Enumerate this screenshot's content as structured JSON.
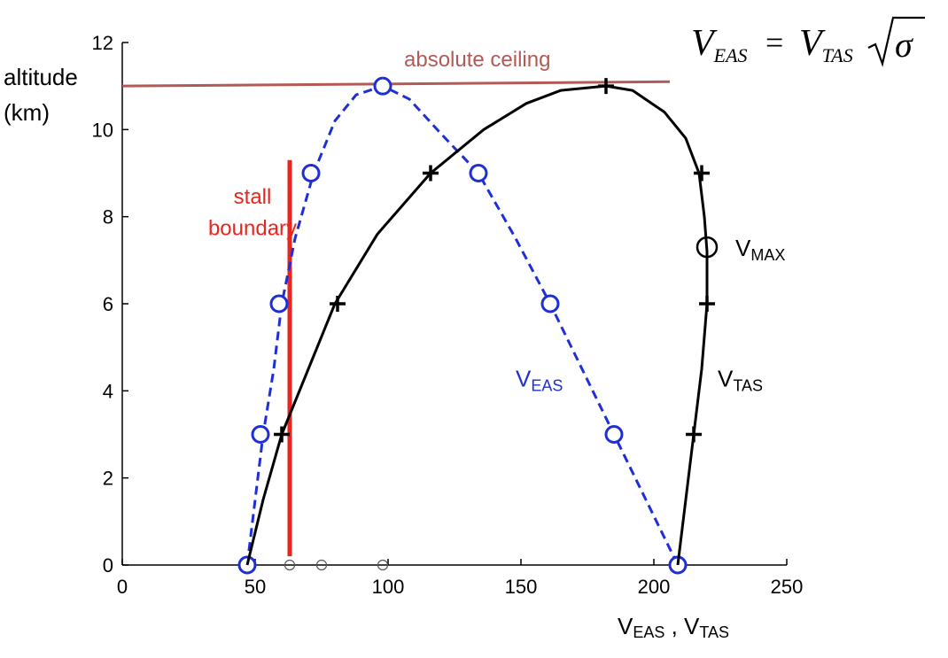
{
  "chart_data": {
    "type": "line",
    "xlim": [
      0,
      250
    ],
    "ylim": [
      0,
      12
    ],
    "x_ticks": [
      0,
      50,
      100,
      150,
      200,
      250
    ],
    "y_ticks": [
      0,
      2,
      4,
      6,
      8,
      10,
      12
    ],
    "grid": false,
    "axis_labels": {
      "y_line1": "altitude",
      "y_line2": "(km)",
      "x_base1": "V",
      "x_sub1": "EAS",
      "x_sep": " , ",
      "x_base2": "V",
      "x_sub2": "TAS"
    },
    "formula": {
      "lhs_base": "V",
      "lhs_sub": "EAS",
      "equals": "=",
      "rhs_base": "V",
      "rhs_sub": "TAS",
      "radicand": "σ"
    },
    "series": [
      {
        "key": "veas",
        "color": "#1f2fd6",
        "style": "dashed",
        "label_base": "V",
        "label_sub": "EAS",
        "label_at": [
          148,
          4.1
        ],
        "curve": [
          [
            47,
            0
          ],
          [
            50,
            1.5
          ],
          [
            53,
            3
          ],
          [
            57,
            4.5
          ],
          [
            60,
            6
          ],
          [
            65,
            7.5
          ],
          [
            72,
            9
          ],
          [
            80,
            10.2
          ],
          [
            88,
            10.8
          ],
          [
            98,
            11
          ],
          [
            108,
            10.7
          ],
          [
            120,
            9.9
          ],
          [
            134,
            9
          ],
          [
            148,
            7.5
          ],
          [
            161,
            6
          ],
          [
            173,
            4.5
          ],
          [
            185,
            3
          ],
          [
            197,
            1.5
          ],
          [
            209,
            0
          ]
        ],
        "markers": [
          [
            47,
            0
          ],
          [
            52,
            3
          ],
          [
            59,
            6
          ],
          [
            71,
            9
          ],
          [
            98,
            11
          ],
          [
            134,
            9
          ],
          [
            161,
            6
          ],
          [
            185,
            3
          ],
          [
            209,
            0
          ]
        ]
      },
      {
        "key": "vtas",
        "color": "#000000",
        "style": "solid",
        "label_base": "V",
        "label_sub": "TAS",
        "label_at": [
          224,
          4.1
        ],
        "curve": [
          [
            47,
            0
          ],
          [
            53,
            1.5
          ],
          [
            60,
            3
          ],
          [
            70,
            4.5
          ],
          [
            80,
            6
          ],
          [
            96,
            7.6
          ],
          [
            116,
            9
          ],
          [
            136,
            10
          ],
          [
            152,
            10.6
          ],
          [
            165,
            10.9
          ],
          [
            182,
            11
          ],
          [
            192,
            10.9
          ],
          [
            204,
            10.4
          ],
          [
            212,
            9.8
          ],
          [
            217,
            9
          ],
          [
            219,
            8
          ],
          [
            220,
            7.2
          ],
          [
            220,
            6
          ],
          [
            218,
            4.5
          ],
          [
            215,
            3
          ],
          [
            212,
            1.5
          ],
          [
            209,
            0
          ]
        ],
        "markers": [
          [
            60,
            3
          ],
          [
            81,
            6
          ],
          [
            116,
            9
          ],
          [
            182,
            11
          ],
          [
            218,
            9
          ],
          [
            220,
            6
          ],
          [
            215,
            3
          ]
        ]
      }
    ],
    "ceiling": {
      "label": "absolute ceiling",
      "y": 11,
      "x_from": 0,
      "x_to": 206,
      "y_end": 11.1,
      "color": "#b35a56"
    },
    "stall": {
      "label_line1": "stall",
      "label_line2": "boundary",
      "x": 63,
      "y_from": 0.2,
      "y_to": 9.3,
      "color": "#e8261f"
    },
    "vmax": {
      "label_base": "V",
      "label_sub": "MAX",
      "at": [
        220,
        7.3
      ]
    },
    "baseline_points": [
      63,
      75,
      98
    ]
  }
}
